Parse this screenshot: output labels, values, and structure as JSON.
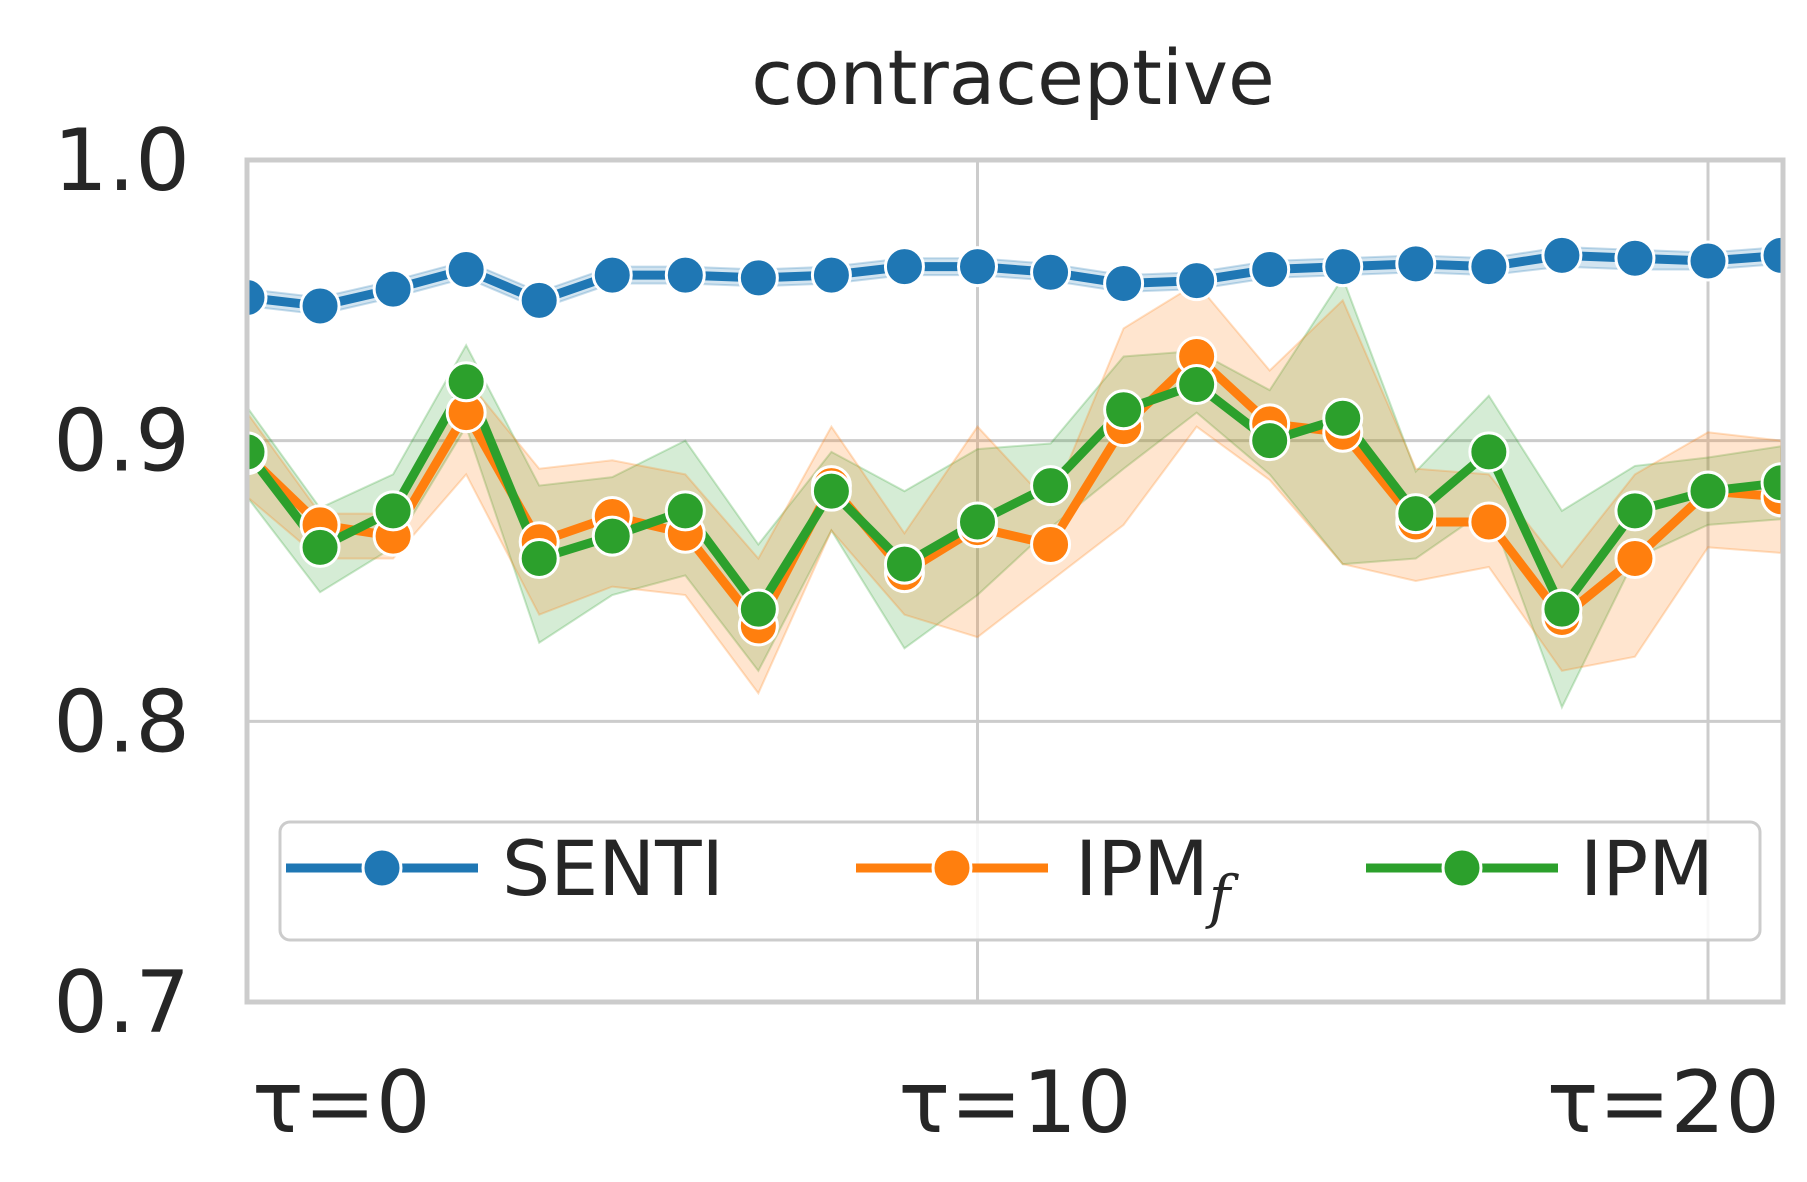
{
  "chart_data": {
    "type": "line",
    "title": "contraceptive",
    "xlabel": "",
    "ylabel": "",
    "x": [
      0,
      1,
      2,
      3,
      4,
      5,
      6,
      7,
      8,
      9,
      10,
      11,
      12,
      13,
      14,
      15,
      16,
      17,
      18,
      19,
      20,
      21
    ],
    "xlim": [
      0,
      20
    ],
    "ylim": [
      0.7,
      1.0
    ],
    "grid": true,
    "x_ticks": [
      {
        "value": 0,
        "label": "τ=0"
      },
      {
        "value": 10,
        "label": "τ=10"
      },
      {
        "value": 20,
        "label": "τ=20"
      }
    ],
    "y_ticks": [
      {
        "value": 1.0,
        "label": "1.0"
      },
      {
        "value": 0.9,
        "label": "0.9"
      },
      {
        "value": 0.8,
        "label": "0.8"
      },
      {
        "value": 0.7,
        "label": "0.7"
      }
    ],
    "legend": {
      "placement": "lower-center",
      "columns": 3
    },
    "series": [
      {
        "name": "SENTI",
        "color": "#1f77b4",
        "values": [
          0.951,
          0.948,
          0.954,
          0.961,
          0.95,
          0.959,
          0.959,
          0.958,
          0.959,
          0.962,
          0.962,
          0.96,
          0.956,
          0.957,
          0.961,
          0.962,
          0.963,
          0.962,
          0.966,
          0.965,
          0.964,
          0.966
        ],
        "lower": [
          0.948,
          0.945,
          0.951,
          0.958,
          0.947,
          0.956,
          0.956,
          0.955,
          0.956,
          0.959,
          0.959,
          0.957,
          0.953,
          0.954,
          0.958,
          0.959,
          0.96,
          0.959,
          0.962,
          0.961,
          0.961,
          0.963
        ],
        "upper": [
          0.954,
          0.951,
          0.957,
          0.964,
          0.953,
          0.962,
          0.962,
          0.961,
          0.962,
          0.965,
          0.965,
          0.963,
          0.959,
          0.96,
          0.964,
          0.965,
          0.966,
          0.965,
          0.969,
          0.968,
          0.967,
          0.969
        ]
      },
      {
        "name": "IPM",
        "name_sub": "f",
        "color": "#ff7f0e",
        "values": [
          0.895,
          0.87,
          0.866,
          0.91,
          0.864,
          0.873,
          0.867,
          0.834,
          0.884,
          0.853,
          0.869,
          0.863,
          0.905,
          0.93,
          0.906,
          0.903,
          0.871,
          0.871,
          0.837,
          0.858,
          0.882,
          0.88
        ],
        "lower": [
          0.88,
          0.858,
          0.858,
          0.888,
          0.838,
          0.848,
          0.845,
          0.81,
          0.868,
          0.838,
          0.83,
          0.85,
          0.87,
          0.905,
          0.886,
          0.856,
          0.85,
          0.855,
          0.818,
          0.823,
          0.862,
          0.86
        ],
        "upper": [
          0.91,
          0.874,
          0.874,
          0.922,
          0.89,
          0.893,
          0.888,
          0.858,
          0.905,
          0.867,
          0.905,
          0.877,
          0.94,
          0.956,
          0.925,
          0.95,
          0.89,
          0.888,
          0.855,
          0.888,
          0.903,
          0.9
        ]
      },
      {
        "name": "IPM",
        "color": "#2ca02c",
        "values": [
          0.896,
          0.862,
          0.875,
          0.921,
          0.858,
          0.866,
          0.875,
          0.84,
          0.882,
          0.856,
          0.871,
          0.884,
          0.911,
          0.92,
          0.9,
          0.908,
          0.874,
          0.896,
          0.84,
          0.875,
          0.882,
          0.885
        ],
        "lower": [
          0.88,
          0.846,
          0.862,
          0.905,
          0.828,
          0.845,
          0.852,
          0.818,
          0.868,
          0.826,
          0.845,
          0.869,
          0.89,
          0.91,
          0.888,
          0.856,
          0.858,
          0.876,
          0.805,
          0.858,
          0.87,
          0.872
        ],
        "upper": [
          0.912,
          0.876,
          0.888,
          0.934,
          0.884,
          0.887,
          0.9,
          0.863,
          0.896,
          0.882,
          0.897,
          0.899,
          0.93,
          0.932,
          0.918,
          0.958,
          0.889,
          0.916,
          0.875,
          0.891,
          0.894,
          0.898
        ]
      }
    ]
  }
}
